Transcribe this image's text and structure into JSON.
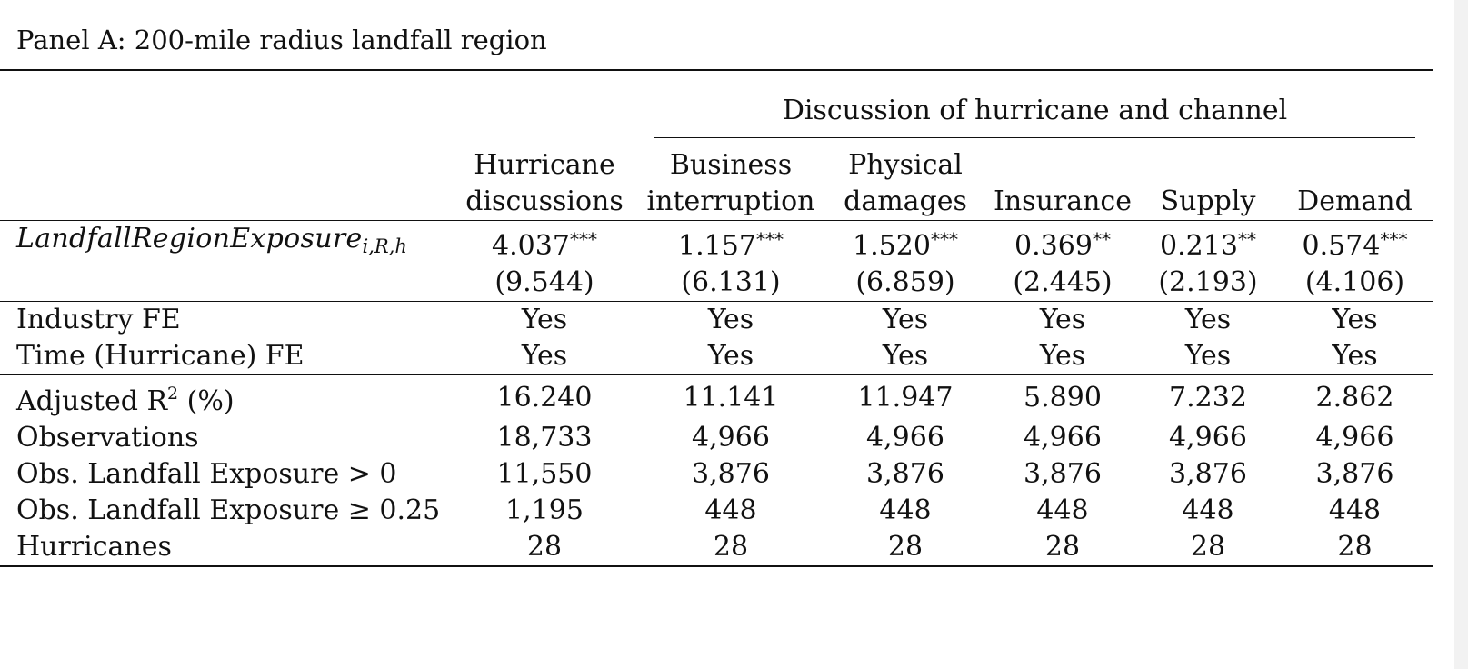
{
  "panel_title": "Panel A: 200-mile radius landfall region",
  "group_header": "Discussion of hurricane and channel",
  "columns": [
    {
      "line1": "Hurricane",
      "line2": "discussions"
    },
    {
      "line1": "Business",
      "line2": "interruption"
    },
    {
      "line1": "Physical",
      "line2": "damages"
    },
    {
      "line1": "",
      "line2": "Insurance"
    },
    {
      "line1": "",
      "line2": "Supply"
    },
    {
      "line1": "",
      "line2": "Demand"
    }
  ],
  "regressor": {
    "name": "LandfallRegionExposure",
    "subscript": "i,R,h",
    "coefficients": [
      {
        "value": "4.037",
        "stars": "***"
      },
      {
        "value": "1.157",
        "stars": "***"
      },
      {
        "value": "1.520",
        "stars": "***"
      },
      {
        "value": "0.369",
        "stars": "**"
      },
      {
        "value": "0.213",
        "stars": "**"
      },
      {
        "value": "0.574",
        "stars": "***"
      }
    ],
    "tstats": [
      "(9.544)",
      "(6.131)",
      "(6.859)",
      "(2.445)",
      "(2.193)",
      "(4.106)"
    ]
  },
  "fixed_effects": [
    {
      "label": "Industry FE",
      "values": [
        "Yes",
        "Yes",
        "Yes",
        "Yes",
        "Yes",
        "Yes"
      ]
    },
    {
      "label": "Time (Hurricane) FE",
      "values": [
        "Yes",
        "Yes",
        "Yes",
        "Yes",
        "Yes",
        "Yes"
      ]
    }
  ],
  "stats": [
    {
      "label": "Adjusted R",
      "sup": "2",
      "label_suffix": " (%)",
      "values": [
        "16.240",
        "11.141",
        "11.947",
        "5.890",
        "7.232",
        "2.862"
      ]
    },
    {
      "label": "Observations",
      "values": [
        "18,733",
        "4,966",
        "4,966",
        "4,966",
        "4,966",
        "4,966"
      ]
    },
    {
      "label": "Obs. Landfall Exposure > 0",
      "values": [
        "11,550",
        "3,876",
        "3,876",
        "3,876",
        "3,876",
        "3,876"
      ]
    },
    {
      "label": "Obs. Landfall Exposure ≥ 0.25",
      "values": [
        "1,195",
        "448",
        "448",
        "448",
        "448",
        "448"
      ]
    },
    {
      "label": "Hurricanes",
      "values": [
        "28",
        "28",
        "28",
        "28",
        "28",
        "28"
      ]
    }
  ]
}
